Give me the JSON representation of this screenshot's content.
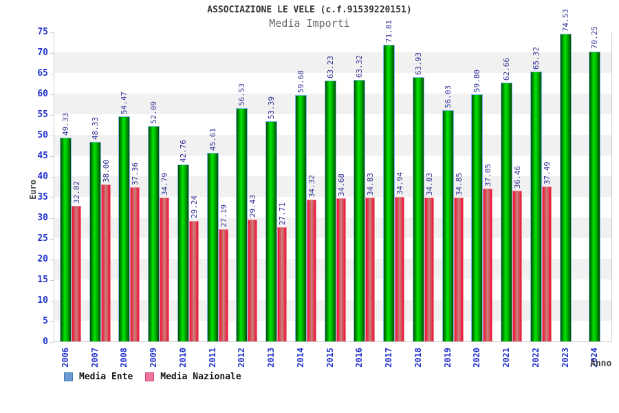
{
  "title": "ASSOCIAZIONE LE VELE (c.f.91539220151)",
  "subtitle": "Media Importi",
  "axes": {
    "y_label": "Euro",
    "x_label": "Anno"
  },
  "legend": {
    "items": [
      {
        "label": "Media Ente",
        "swatch_color": "#6b9bd2",
        "swatch_border": "#4477aa"
      },
      {
        "label": "Media Nazionale",
        "swatch_color": "#ee7799",
        "swatch_border": "#cc4477"
      }
    ]
  },
  "colors": {
    "bar_green": "#00c800",
    "bar_green_edge": "#014d01",
    "bar_green_border": "#7fb8e8",
    "bar_red": "#ee1133",
    "bar_red_center": "#d98f8f",
    "bar_red_border": "#f08898",
    "value_label": "#333399",
    "axis_tick_label": "#2233cc",
    "band_gray": "#f1f1f1",
    "title_color": "#333333",
    "subtitle_color": "#666666"
  },
  "chart_data": {
    "type": "bar",
    "title": "Media Importi",
    "xlabel": "Anno",
    "ylabel": "Euro",
    "ylim": [
      0,
      75
    ],
    "y_ticks": [
      0,
      5,
      10,
      15,
      20,
      25,
      30,
      35,
      40,
      45,
      50,
      55,
      60,
      65,
      70,
      75
    ],
    "grid": "alternating-horizontal-bands",
    "legend_position": "bottom-left",
    "categories": [
      "2006",
      "2007",
      "2008",
      "2009",
      "2010",
      "2011",
      "2012",
      "2013",
      "2014",
      "2015",
      "2016",
      "2017",
      "2018",
      "2019",
      "2020",
      "2021",
      "2022",
      "2023",
      "2024"
    ],
    "series": [
      {
        "name": "Media Ente",
        "values": [
          49.33,
          48.33,
          54.47,
          52.09,
          42.76,
          45.61,
          56.53,
          53.39,
          59.68,
          63.23,
          63.32,
          71.81,
          63.93,
          56.03,
          59.8,
          62.66,
          65.32,
          74.53,
          70.25
        ],
        "labels": [
          "49.33",
          "48.33",
          "54.47",
          "52.09",
          "42.76",
          "45.61",
          "56.53",
          "53.39",
          "59.68",
          "63.23",
          "63.32",
          "71.81",
          "63.93",
          "56.03",
          "59.80",
          "62.66",
          "65.32",
          "74.53",
          "70.25"
        ]
      },
      {
        "name": "Media Nazionale",
        "values": [
          32.82,
          38.0,
          37.36,
          34.79,
          29.24,
          27.19,
          29.43,
          27.71,
          34.32,
          34.68,
          34.83,
          34.94,
          34.83,
          34.85,
          37.05,
          36.46,
          37.49,
          null,
          null
        ],
        "labels": [
          "32.82",
          "38.00",
          "37.36",
          "34.79",
          "29.24",
          "27.19",
          "29.43",
          "27.71",
          "34.32",
          "34.68",
          "34.83",
          "34.94",
          "34.83",
          "34.85",
          "37.05",
          "36.46",
          "37.49",
          null,
          null
        ]
      }
    ]
  }
}
